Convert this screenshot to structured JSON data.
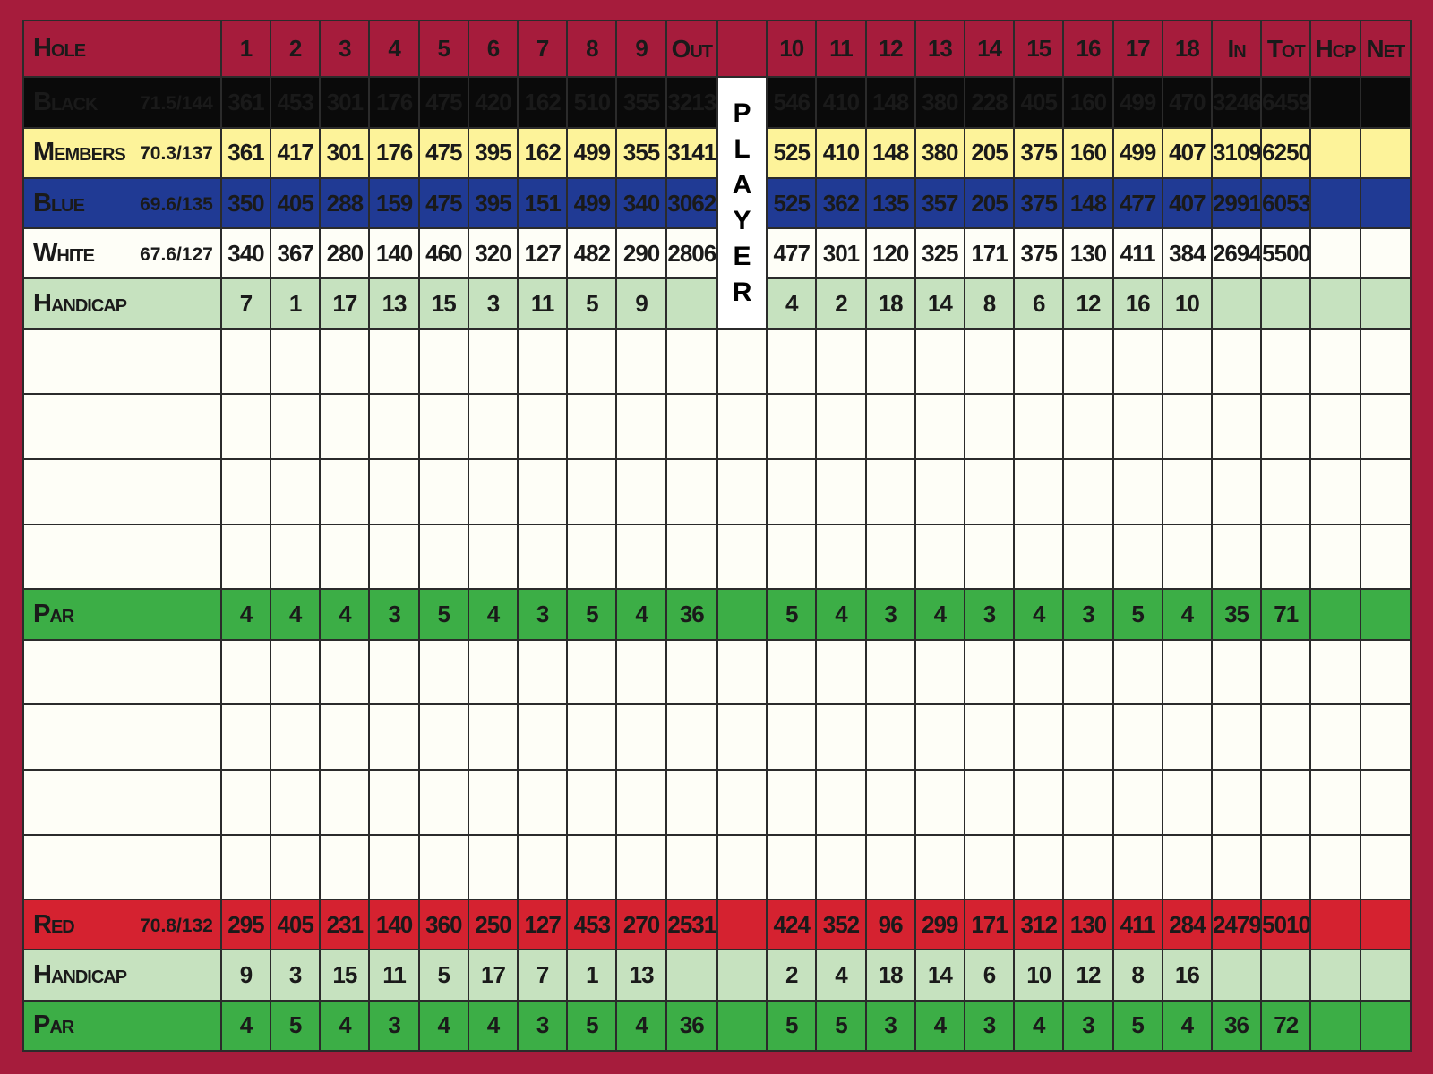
{
  "header": {
    "label": "Hole",
    "holes_front": [
      "1",
      "2",
      "3",
      "4",
      "5",
      "6",
      "7",
      "8",
      "9"
    ],
    "out": "Out",
    "holes_back": [
      "10",
      "11",
      "12",
      "13",
      "14",
      "15",
      "16",
      "17",
      "18"
    ],
    "in": "In",
    "tot": "Tot",
    "hcp": "Hcp",
    "net": "Net"
  },
  "player_label": [
    "P",
    "L",
    "A",
    "Y",
    "E",
    "R"
  ],
  "colors": {
    "border": "#a61c3c",
    "black": "#0a0a0a",
    "members": "#fdf39a",
    "blue": "#203a94",
    "white": "#fefef7",
    "handicap": "#c6e2bf",
    "par": "#3cae46",
    "red": "#d52230"
  },
  "tees_top": [
    {
      "key": "black",
      "name": "Black",
      "rating": "71.5/144",
      "front": [
        "361",
        "453",
        "301",
        "176",
        "475",
        "420",
        "162",
        "510",
        "355"
      ],
      "out": "3213",
      "back": [
        "546",
        "410",
        "148",
        "380",
        "228",
        "405",
        "160",
        "499",
        "470"
      ],
      "in": "3246",
      "tot": "6459"
    },
    {
      "key": "members",
      "name": "Members",
      "rating": "70.3/137",
      "front": [
        "361",
        "417",
        "301",
        "176",
        "475",
        "395",
        "162",
        "499",
        "355"
      ],
      "out": "3141",
      "back": [
        "525",
        "410",
        "148",
        "380",
        "205",
        "375",
        "160",
        "499",
        "407"
      ],
      "in": "3109",
      "tot": "6250"
    },
    {
      "key": "blue",
      "name": "Blue",
      "rating": "69.6/135",
      "front": [
        "350",
        "405",
        "288",
        "159",
        "475",
        "395",
        "151",
        "499",
        "340"
      ],
      "out": "3062",
      "back": [
        "525",
        "362",
        "135",
        "357",
        "205",
        "375",
        "148",
        "477",
        "407"
      ],
      "in": "2991",
      "tot": "6053"
    },
    {
      "key": "white",
      "name": "White",
      "rating": "67.6/127",
      "front": [
        "340",
        "367",
        "280",
        "140",
        "460",
        "320",
        "127",
        "482",
        "290"
      ],
      "out": "2806",
      "back": [
        "477",
        "301",
        "120",
        "325",
        "171",
        "375",
        "130",
        "411",
        "384"
      ],
      "in": "2694",
      "tot": "5500"
    }
  ],
  "handicap_men": {
    "name": "Handicap",
    "front": [
      "7",
      "1",
      "17",
      "13",
      "15",
      "3",
      "11",
      "5",
      "9"
    ],
    "back": [
      "4",
      "2",
      "18",
      "14",
      "8",
      "6",
      "12",
      "16",
      "10"
    ]
  },
  "par_men": {
    "name": "Par",
    "front": [
      "4",
      "4",
      "4",
      "3",
      "5",
      "4",
      "3",
      "5",
      "4"
    ],
    "out": "36",
    "back": [
      "5",
      "4",
      "3",
      "4",
      "3",
      "4",
      "3",
      "5",
      "4"
    ],
    "in": "35",
    "tot": "71"
  },
  "red": {
    "name": "Red",
    "rating": "70.8/132",
    "front": [
      "295",
      "405",
      "231",
      "140",
      "360",
      "250",
      "127",
      "453",
      "270"
    ],
    "out": "2531",
    "back": [
      "424",
      "352",
      "96",
      "299",
      "171",
      "312",
      "130",
      "411",
      "284"
    ],
    "in": "2479",
    "tot": "5010"
  },
  "handicap_women": {
    "name": "Handicap",
    "front": [
      "9",
      "3",
      "15",
      "11",
      "5",
      "17",
      "7",
      "1",
      "13"
    ],
    "back": [
      "2",
      "4",
      "18",
      "14",
      "6",
      "10",
      "12",
      "8",
      "16"
    ]
  },
  "par_women": {
    "name": "Par",
    "front": [
      "4",
      "5",
      "4",
      "3",
      "4",
      "4",
      "3",
      "5",
      "4"
    ],
    "out": "36",
    "back": [
      "5",
      "5",
      "3",
      "4",
      "3",
      "4",
      "3",
      "5",
      "4"
    ],
    "in": "36",
    "tot": "72"
  }
}
